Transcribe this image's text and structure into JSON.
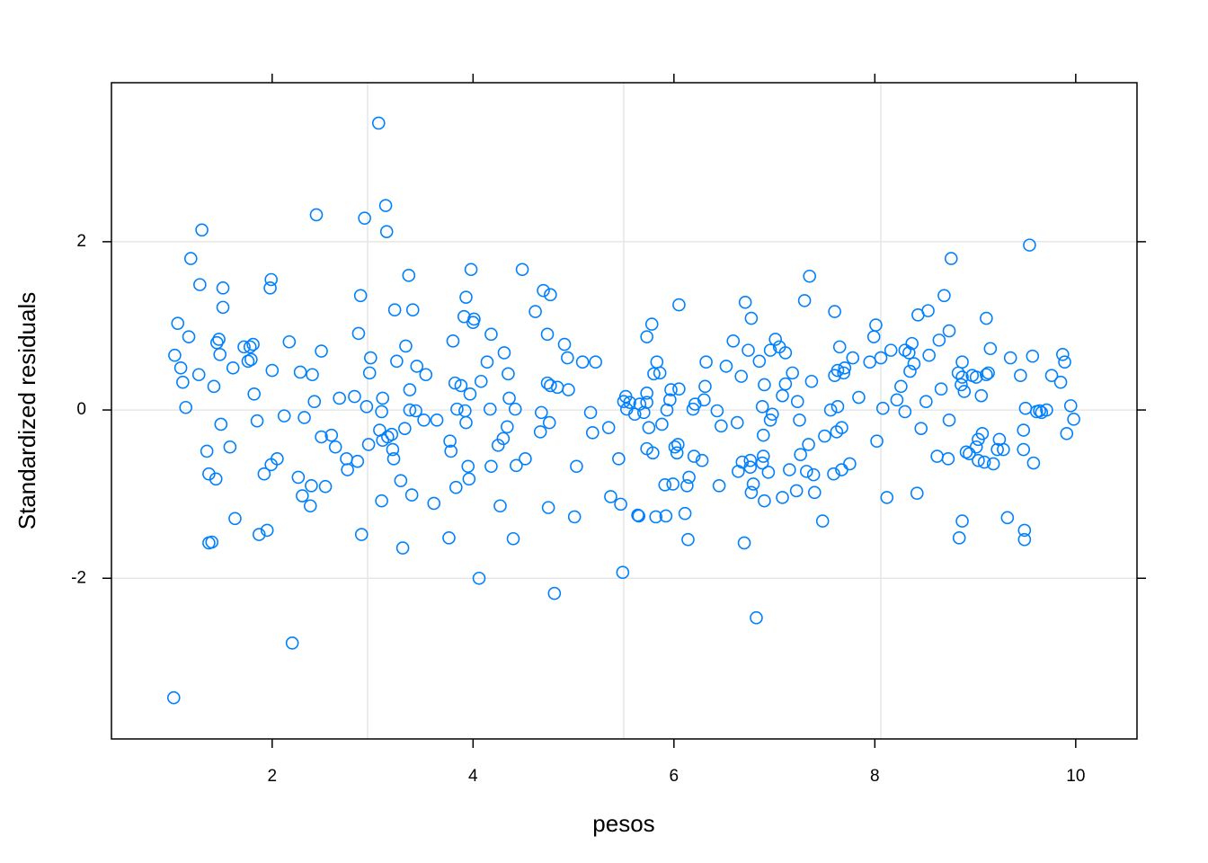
{
  "chart_data": {
    "type": "scatter",
    "x_label": "pesos",
    "y_label": "Standardized residuals",
    "xlim": [
      0.4,
      10.61
    ],
    "ylim": [
      -3.91,
      3.89
    ],
    "xticks": [
      2,
      4,
      6,
      8,
      10
    ],
    "yticks": [
      -2,
      0,
      2
    ],
    "xgrid": [
      2.95,
      5.5,
      8.06
    ],
    "grid": true,
    "color": "#0080ff",
    "x": [
      1.02,
      1.03,
      1.06,
      1.09,
      1.11,
      1.14,
      1.17,
      1.19,
      1.27,
      1.28,
      1.3,
      1.35,
      1.37,
      1.37,
      1.4,
      1.42,
      1.44,
      1.45,
      1.47,
      1.48,
      1.49,
      1.51,
      1.51,
      1.58,
      1.61,
      1.63,
      1.72,
      1.76,
      1.78,
      1.79,
      1.81,
      1.82,
      1.85,
      1.87,
      1.92,
      1.95,
      1.98,
      1.99,
      1.99,
      2.0,
      2.05,
      2.12,
      2.17,
      2.2,
      2.26,
      2.28,
      2.3,
      2.32,
      2.38,
      2.39,
      2.4,
      2.42,
      2.44,
      2.49,
      2.49,
      2.53,
      2.59,
      2.63,
      2.67,
      2.74,
      2.75,
      2.82,
      2.85,
      2.86,
      2.88,
      2.89,
      2.92,
      2.94,
      2.96,
      2.97,
      2.98,
      3.06,
      3.07,
      3.09,
      3.09,
      3.1,
      3.1,
      3.13,
      3.14,
      3.15,
      3.19,
      3.2,
      3.21,
      3.22,
      3.24,
      3.28,
      3.3,
      3.32,
      3.33,
      3.36,
      3.37,
      3.37,
      3.39,
      3.4,
      3.43,
      3.44,
      3.51,
      3.53,
      3.61,
      3.64,
      3.76,
      3.77,
      3.78,
      3.8,
      3.82,
      3.83,
      3.84,
      3.88,
      3.91,
      3.92,
      3.93,
      3.93,
      3.95,
      3.96,
      3.97,
      3.98,
      4.0,
      4.01,
      4.06,
      4.08,
      4.14,
      4.17,
      4.18,
      4.18,
      4.25,
      4.27,
      4.3,
      4.31,
      4.34,
      4.35,
      4.36,
      4.4,
      4.42,
      4.43,
      4.49,
      4.52,
      4.62,
      4.67,
      4.68,
      4.7,
      4.74,
      4.74,
      4.75,
      4.76,
      4.77,
      4.77,
      4.81,
      4.84,
      4.91,
      4.94,
      4.95,
      5.01,
      5.03,
      5.09,
      5.17,
      5.19,
      5.22,
      5.35,
      5.37,
      5.45,
      5.47,
      5.49,
      5.5,
      5.52,
      5.53,
      5.56,
      5.61,
      5.64,
      5.65,
      5.66,
      5.7,
      5.73,
      5.73,
      5.73,
      5.73,
      5.75,
      5.78,
      5.79,
      5.8,
      5.82,
      5.83,
      5.86,
      5.88,
      5.91,
      5.92,
      5.93,
      5.96,
      5.97,
      5.99,
      6.01,
      6.03,
      6.04,
      6.05,
      6.05,
      6.11,
      6.13,
      6.14,
      6.15,
      6.19,
      6.2,
      6.21,
      6.28,
      6.3,
      6.31,
      6.32,
      6.43,
      6.45,
      6.47,
      6.52,
      6.59,
      6.63,
      6.64,
      6.67,
      6.68,
      6.7,
      6.71,
      6.74,
      6.76,
      6.76,
      6.77,
      6.77,
      6.79,
      6.82,
      6.85,
      6.88,
      6.88,
      6.89,
      6.89,
      6.9,
      6.9,
      6.94,
      6.96,
      6.96,
      6.98,
      7.01,
      7.05,
      7.08,
      7.08,
      7.11,
      7.11,
      7.15,
      7.18,
      7.22,
      7.23,
      7.25,
      7.26,
      7.3,
      7.32,
      7.34,
      7.35,
      7.37,
      7.39,
      7.4,
      7.48,
      7.5,
      7.56,
      7.59,
      7.6,
      7.6,
      7.62,
      7.63,
      7.63,
      7.65,
      7.67,
      7.67,
      7.69,
      7.7,
      7.75,
      7.78,
      7.84,
      7.95,
      7.99,
      8.01,
      8.02,
      8.06,
      8.08,
      8.12,
      8.16,
      8.22,
      8.26,
      8.3,
      8.3,
      8.34,
      8.35,
      8.37,
      8.39,
      8.42,
      8.43,
      8.46,
      8.51,
      8.53,
      8.54,
      8.62,
      8.64,
      8.66,
      8.69,
      8.73,
      8.74,
      8.74,
      8.76,
      8.83,
      8.84,
      8.86,
      8.87,
      8.87,
      8.87,
      8.89,
      8.91,
      8.94,
      8.97,
      9.01,
      9.01,
      9.03,
      9.03,
      9.06,
      9.07,
      9.09,
      9.11,
      9.11,
      9.13,
      9.15,
      9.18,
      9.22,
      9.24,
      9.28,
      9.32,
      9.35,
      9.45,
      9.48,
      9.48,
      9.49,
      9.49,
      9.5,
      9.54,
      9.57,
      9.58,
      9.61,
      9.64,
      9.66,
      9.71,
      9.76,
      9.85,
      9.87,
      9.89,
      9.91,
      9.95,
      9.98
    ],
    "y": [
      -3.42,
      0.65,
      1.03,
      0.5,
      0.33,
      0.03,
      0.87,
      1.8,
      0.42,
      1.49,
      2.14,
      -0.49,
      -0.76,
      -1.58,
      -1.57,
      0.28,
      -0.82,
      0.8,
      0.84,
      0.66,
      -0.17,
      1.45,
      1.22,
      -0.44,
      0.5,
      -1.29,
      0.75,
      0.58,
      0.75,
      0.6,
      0.78,
      0.19,
      -0.13,
      -1.48,
      -0.76,
      -1.43,
      1.45,
      1.55,
      -0.65,
      0.47,
      -0.58,
      -0.07,
      0.81,
      -2.77,
      -0.8,
      0.45,
      -1.02,
      -0.09,
      -1.14,
      -0.9,
      0.42,
      0.1,
      2.32,
      0.7,
      -0.32,
      -0.91,
      -0.3,
      -0.44,
      0.14,
      -0.58,
      -0.71,
      0.16,
      -0.61,
      0.91,
      1.36,
      -1.48,
      2.28,
      0.04,
      -0.41,
      0.44,
      0.62,
      3.41,
      -0.24,
      -1.08,
      -0.02,
      0.14,
      -0.36,
      2.43,
      2.12,
      -0.32,
      -0.29,
      -0.47,
      -0.58,
      1.19,
      0.58,
      -0.84,
      -1.64,
      -0.22,
      0.76,
      1.6,
      0.24,
      0.0,
      -1.01,
      1.19,
      -0.01,
      0.52,
      -0.12,
      0.42,
      -1.11,
      -0.12,
      -1.52,
      -0.37,
      -0.49,
      0.82,
      0.32,
      -0.92,
      0.01,
      0.29,
      1.11,
      -0.01,
      1.34,
      -0.15,
      -0.67,
      -0.82,
      0.19,
      1.67,
      1.04,
      1.08,
      -2.0,
      0.34,
      0.57,
      0.01,
      -0.67,
      0.9,
      -0.42,
      -1.14,
      -0.34,
      0.68,
      -0.2,
      0.43,
      0.14,
      -1.53,
      0.01,
      -0.66,
      1.67,
      -0.58,
      1.17,
      -0.26,
      -0.03,
      1.42,
      0.9,
      0.32,
      -1.16,
      -0.15,
      0.29,
      1.37,
      -2.18,
      0.27,
      0.78,
      0.62,
      0.24,
      -1.27,
      -0.67,
      0.57,
      -0.03,
      -0.27,
      0.57,
      -0.21,
      -1.03,
      -0.58,
      -1.12,
      -1.93,
      0.1,
      0.16,
      0.01,
      0.09,
      -0.05,
      -1.25,
      -1.26,
      0.07,
      -0.03,
      0.87,
      0.2,
      -0.46,
      0.09,
      -0.21,
      1.02,
      -0.51,
      0.43,
      -1.27,
      0.57,
      0.44,
      -0.17,
      -0.89,
      -1.26,
      0.0,
      0.12,
      0.24,
      -0.88,
      -0.44,
      -0.51,
      -0.41,
      0.25,
      1.25,
      -1.23,
      -0.9,
      -1.54,
      -0.8,
      0.01,
      -0.55,
      0.07,
      -0.6,
      0.12,
      0.28,
      0.57,
      -0.01,
      -0.9,
      -0.19,
      0.52,
      0.82,
      -0.15,
      -0.73,
      0.4,
      -0.62,
      -1.58,
      1.28,
      0.71,
      -0.6,
      -0.68,
      1.09,
      -0.98,
      -0.88,
      -2.47,
      0.58,
      -0.63,
      0.04,
      -0.55,
      -0.3,
      -1.08,
      0.3,
      -0.74,
      0.71,
      -0.12,
      -0.05,
      0.84,
      0.75,
      0.17,
      -1.04,
      0.31,
      0.68,
      -0.71,
      0.44,
      -0.96,
      0.1,
      -0.12,
      -0.53,
      1.3,
      -0.73,
      -0.41,
      1.59,
      0.34,
      -0.77,
      -0.98,
      -1.32,
      -0.31,
      0.0,
      -0.76,
      1.17,
      0.41,
      -0.26,
      0.04,
      0.47,
      0.75,
      -0.21,
      -0.71,
      0.44,
      0.5,
      -0.64,
      0.62,
      0.15,
      0.57,
      0.87,
      1.01,
      -0.37,
      0.62,
      0.02,
      -1.04,
      0.71,
      0.12,
      0.28,
      0.71,
      -0.02,
      0.68,
      0.46,
      0.79,
      0.55,
      -0.99,
      1.13,
      -0.22,
      0.1,
      1.18,
      0.65,
      -0.55,
      0.83,
      0.25,
      1.36,
      -0.58,
      0.94,
      -0.12,
      1.8,
      0.44,
      -1.52,
      0.3,
      0.57,
      -1.32,
      0.39,
      0.22,
      -0.5,
      -0.52,
      0.41,
      0.39,
      -0.44,
      -0.35,
      -0.6,
      0.17,
      -0.28,
      -0.62,
      1.09,
      0.42,
      0.44,
      0.73,
      -0.64,
      -0.47,
      -0.35,
      -0.47,
      -1.28,
      0.62,
      0.41,
      -0.24,
      -0.47,
      -1.43,
      -1.54,
      0.02,
      1.96,
      0.64,
      -0.63,
      -0.02,
      -0.01,
      -0.03,
      0.0,
      0.41,
      0.33,
      0.66,
      0.57,
      -0.28,
      0.05,
      -0.11
    ]
  }
}
